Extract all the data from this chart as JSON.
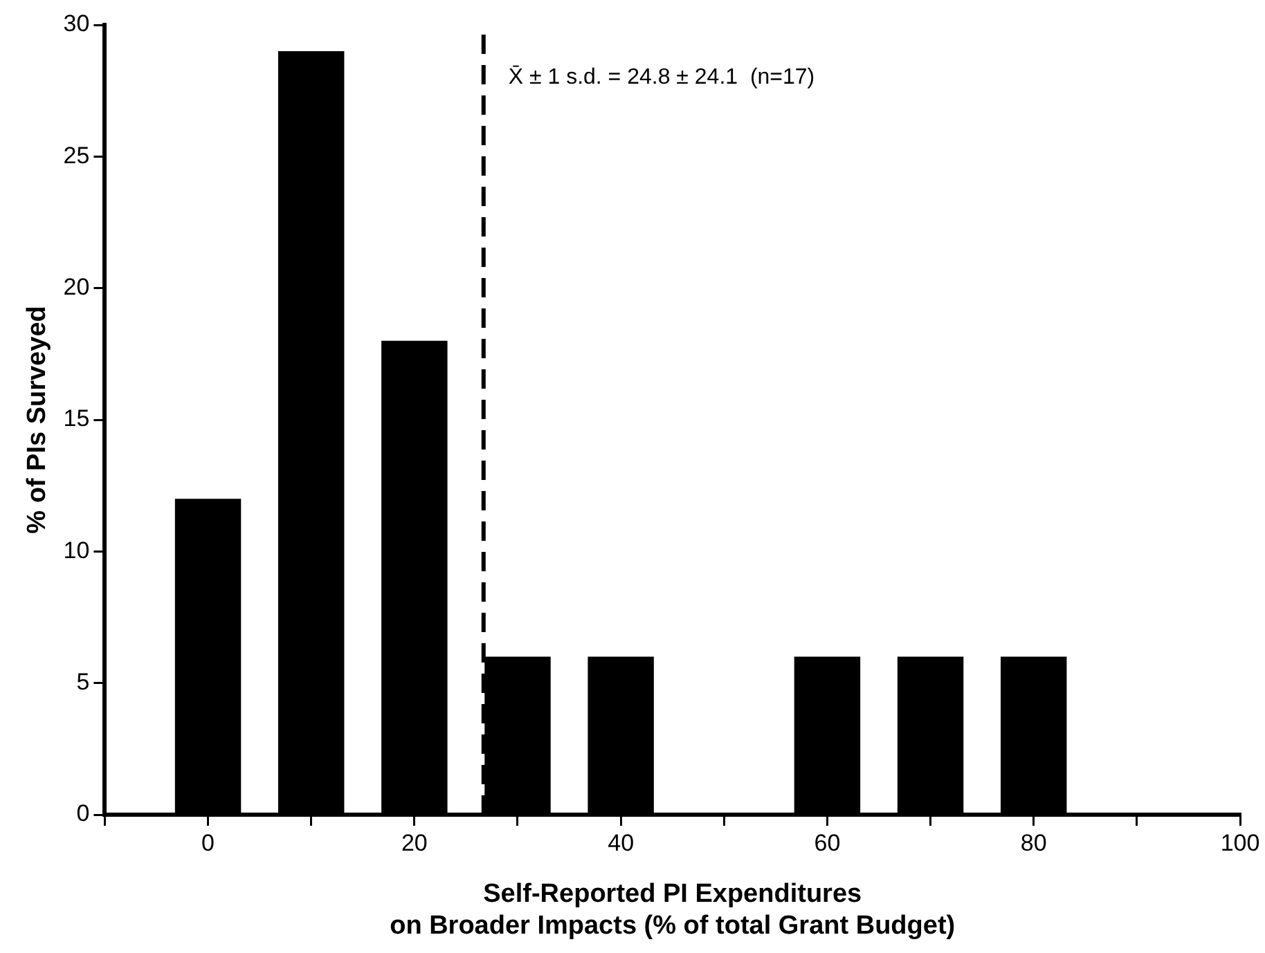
{
  "chart_data": {
    "type": "bar",
    "x": [
      0,
      10,
      20,
      30,
      40,
      60,
      70,
      80
    ],
    "values": [
      12,
      29,
      18,
      6,
      6,
      6,
      6,
      6
    ],
    "color": "#000000",
    "xlabel": "Self-Reported PI Expenditures\non Broader Impacts (% of total Grant Budget)",
    "ylabel": "% of PIs Surveyed",
    "xlim": [
      -10,
      100
    ],
    "xticks": [
      {
        "value": -10,
        "label": null
      },
      0,
      {
        "value": 10,
        "label": null
      },
      20,
      {
        "value": 30,
        "label": null
      },
      40,
      {
        "value": 50,
        "label": null
      },
      60,
      {
        "value": 70,
        "label": null
      },
      80,
      {
        "value": 90,
        "label": null
      },
      100
    ],
    "ylim": [
      0,
      30
    ],
    "yticks": [
      0,
      5,
      10,
      15,
      20,
      25,
      30
    ],
    "grid": false,
    "legend": false,
    "annotations": [
      "X̄ ± 1 s.d. = 24.8 ± 24.1  (n=17)"
    ],
    "ref_lines": [
      {
        "axis": "x",
        "value": 26.7,
        "color": "#000000",
        "line_style": "dashed"
      }
    ]
  }
}
